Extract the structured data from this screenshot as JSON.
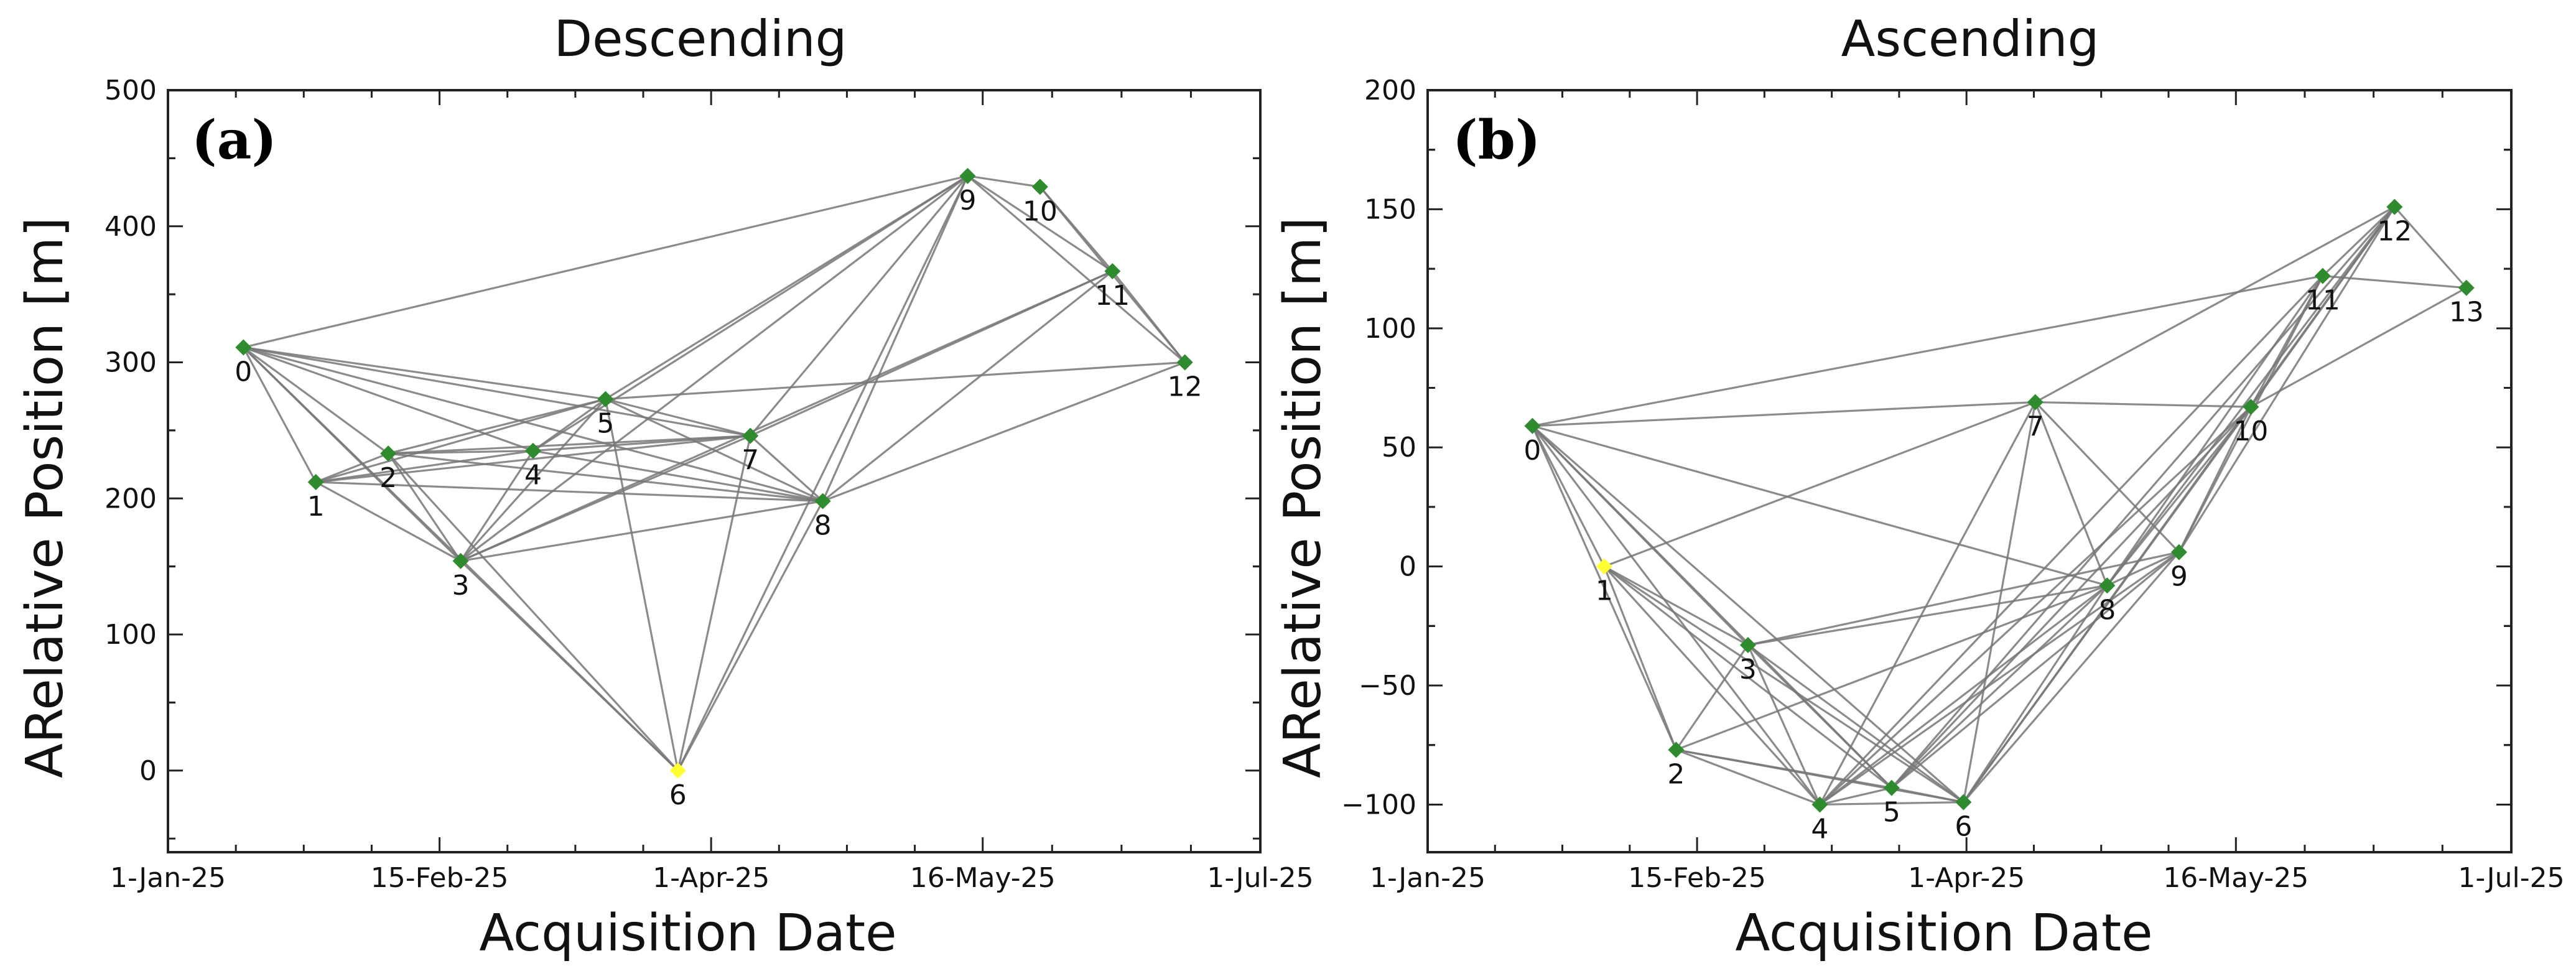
{
  "chart_data": [
    {
      "type": "scatter",
      "subtype": "baseline-network",
      "panel_label": "(a)",
      "title": "Descending",
      "xlabel": "Acquisition Date",
      "ylabel": "ARelative Position [m]",
      "x_unit": "days since 1-Jan-25",
      "xlim": [
        0,
        181
      ],
      "ylim": [
        -60,
        500
      ],
      "xticks": [
        0,
        45,
        90,
        135,
        181
      ],
      "xtick_labels": [
        "1-Jan-25",
        "15-Feb-25",
        "1-Apr-25",
        "16-May-25",
        "1-Jul-25"
      ],
      "yticks": [
        0,
        100,
        200,
        300,
        400,
        500
      ],
      "ytick_labels": [
        "0",
        "100",
        "200",
        "300",
        "400",
        "500"
      ],
      "node_color": "#2e8b2e",
      "reference_color": "#ffff33",
      "edge_color": "#777777",
      "reference_node": 6,
      "nodes": [
        {
          "id": 0,
          "label": "0",
          "x": 12.5,
          "y": 311
        },
        {
          "id": 1,
          "label": "1",
          "x": 24.5,
          "y": 212
        },
        {
          "id": 2,
          "label": "2",
          "x": 36.5,
          "y": 233
        },
        {
          "id": 3,
          "label": "3",
          "x": 48.5,
          "y": 154
        },
        {
          "id": 4,
          "label": "4",
          "x": 60.5,
          "y": 235
        },
        {
          "id": 5,
          "label": "5",
          "x": 72.5,
          "y": 273
        },
        {
          "id": 6,
          "label": "6",
          "x": 84.5,
          "y": 0
        },
        {
          "id": 7,
          "label": "7",
          "x": 96.5,
          "y": 246
        },
        {
          "id": 8,
          "label": "8",
          "x": 108.5,
          "y": 198
        },
        {
          "id": 9,
          "label": "9",
          "x": 132.5,
          "y": 437
        },
        {
          "id": 10,
          "label": "10",
          "x": 144.5,
          "y": 429
        },
        {
          "id": 11,
          "label": "11",
          "x": 156.5,
          "y": 367
        },
        {
          "id": 12,
          "label": "12",
          "x": 168.5,
          "y": 300
        }
      ],
      "edges": [
        [
          0,
          1
        ],
        [
          0,
          2
        ],
        [
          0,
          3
        ],
        [
          0,
          4
        ],
        [
          0,
          5
        ],
        [
          0,
          6
        ],
        [
          0,
          7
        ],
        [
          0,
          8
        ],
        [
          0,
          9
        ],
        [
          1,
          2
        ],
        [
          1,
          3
        ],
        [
          1,
          4
        ],
        [
          1,
          5
        ],
        [
          1,
          7
        ],
        [
          1,
          8
        ],
        [
          2,
          3
        ],
        [
          2,
          4
        ],
        [
          2,
          5
        ],
        [
          2,
          6
        ],
        [
          2,
          7
        ],
        [
          2,
          8
        ],
        [
          3,
          4
        ],
        [
          3,
          5
        ],
        [
          3,
          6
        ],
        [
          3,
          7
        ],
        [
          3,
          8
        ],
        [
          3,
          9
        ],
        [
          3,
          11
        ],
        [
          4,
          5
        ],
        [
          4,
          7
        ],
        [
          4,
          8
        ],
        [
          4,
          9
        ],
        [
          5,
          6
        ],
        [
          5,
          7
        ],
        [
          5,
          8
        ],
        [
          5,
          9
        ],
        [
          5,
          12
        ],
        [
          6,
          7
        ],
        [
          6,
          8
        ],
        [
          6,
          9
        ],
        [
          7,
          8
        ],
        [
          7,
          9
        ],
        [
          7,
          11
        ],
        [
          8,
          9
        ],
        [
          8,
          11
        ],
        [
          8,
          12
        ],
        [
          9,
          10
        ],
        [
          9,
          11
        ],
        [
          9,
          12
        ],
        [
          10,
          11
        ],
        [
          10,
          12
        ],
        [
          11,
          12
        ]
      ]
    },
    {
      "type": "scatter",
      "subtype": "baseline-network",
      "panel_label": "(b)",
      "title": "Ascending",
      "xlabel": "Acquisition Date",
      "ylabel": "ARelative Position [m]",
      "x_unit": "days since 1-Jan-25",
      "xlim": [
        0,
        181
      ],
      "ylim": [
        -120,
        200
      ],
      "xticks": [
        0,
        45,
        90,
        135,
        181
      ],
      "xtick_labels": [
        "1-Jan-25",
        "15-Feb-25",
        "1-Apr-25",
        "16-May-25",
        "1-Jul-25"
      ],
      "yticks": [
        -100,
        -50,
        0,
        50,
        100,
        150,
        200
      ],
      "ytick_labels": [
        "−100",
        "−50",
        "0",
        "50",
        "100",
        "150",
        "200"
      ],
      "node_color": "#2e8b2e",
      "reference_color": "#ffff33",
      "edge_color": "#777777",
      "reference_node": 1,
      "nodes": [
        {
          "id": 0,
          "label": "0",
          "x": 17.5,
          "y": 59
        },
        {
          "id": 1,
          "label": "1",
          "x": 29.5,
          "y": 0
        },
        {
          "id": 2,
          "label": "2",
          "x": 41.5,
          "y": -77
        },
        {
          "id": 3,
          "label": "3",
          "x": 53.5,
          "y": -33
        },
        {
          "id": 4,
          "label": "4",
          "x": 65.5,
          "y": -100
        },
        {
          "id": 5,
          "label": "5",
          "x": 77.5,
          "y": -93
        },
        {
          "id": 6,
          "label": "6",
          "x": 89.5,
          "y": -99
        },
        {
          "id": 7,
          "label": "7",
          "x": 101.5,
          "y": 69
        },
        {
          "id": 8,
          "label": "8",
          "x": 113.5,
          "y": -8
        },
        {
          "id": 9,
          "label": "9",
          "x": 125.5,
          "y": 6
        },
        {
          "id": 10,
          "label": "10",
          "x": 137.5,
          "y": 67
        },
        {
          "id": 11,
          "label": "11",
          "x": 149.5,
          "y": 122
        },
        {
          "id": 12,
          "label": "12",
          "x": 161.5,
          "y": 151
        },
        {
          "id": 13,
          "label": "13",
          "x": 173.5,
          "y": 117
        }
      ],
      "edges": [
        [
          0,
          1
        ],
        [
          0,
          2
        ],
        [
          0,
          3
        ],
        [
          0,
          4
        ],
        [
          0,
          5
        ],
        [
          0,
          6
        ],
        [
          0,
          7
        ],
        [
          0,
          8
        ],
        [
          0,
          11
        ],
        [
          1,
          2
        ],
        [
          1,
          3
        ],
        [
          1,
          4
        ],
        [
          1,
          5
        ],
        [
          1,
          6
        ],
        [
          1,
          7
        ],
        [
          2,
          3
        ],
        [
          2,
          4
        ],
        [
          2,
          5
        ],
        [
          2,
          6
        ],
        [
          2,
          8
        ],
        [
          3,
          4
        ],
        [
          3,
          5
        ],
        [
          3,
          6
        ],
        [
          3,
          8
        ],
        [
          3,
          9
        ],
        [
          4,
          5
        ],
        [
          4,
          6
        ],
        [
          4,
          7
        ],
        [
          4,
          8
        ],
        [
          4,
          9
        ],
        [
          4,
          10
        ],
        [
          4,
          11
        ],
        [
          5,
          6
        ],
        [
          5,
          8
        ],
        [
          5,
          9
        ],
        [
          5,
          10
        ],
        [
          5,
          12
        ],
        [
          6,
          7
        ],
        [
          6,
          8
        ],
        [
          6,
          9
        ],
        [
          6,
          10
        ],
        [
          6,
          12
        ],
        [
          7,
          8
        ],
        [
          7,
          9
        ],
        [
          7,
          10
        ],
        [
          7,
          12
        ],
        [
          8,
          9
        ],
        [
          8,
          10
        ],
        [
          8,
          11
        ],
        [
          8,
          12
        ],
        [
          9,
          10
        ],
        [
          9,
          11
        ],
        [
          9,
          12
        ],
        [
          10,
          11
        ],
        [
          10,
          12
        ],
        [
          10,
          13
        ],
        [
          11,
          12
        ],
        [
          11,
          13
        ],
        [
          12,
          13
        ]
      ]
    }
  ]
}
